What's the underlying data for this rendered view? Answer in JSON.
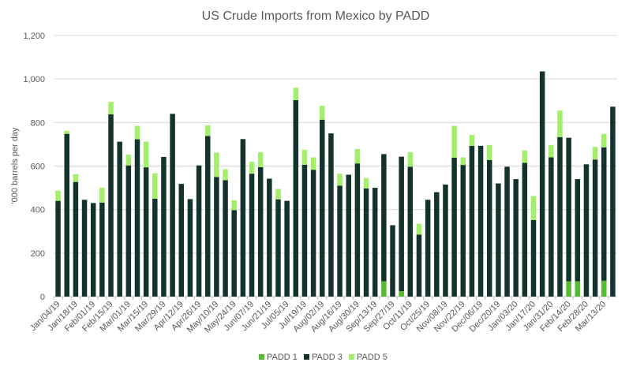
{
  "chart_data": {
    "type": "bar",
    "stacked": true,
    "title": "US Crude Imports from Mexico by PADD",
    "xlabel": "",
    "ylabel": "'000 barrels per day",
    "ylim": [
      0,
      1200
    ],
    "yticks": [
      "0",
      "200",
      "400",
      "600",
      "800",
      "1,000",
      "1,200"
    ],
    "grid": true,
    "legend_position": "bottom",
    "x_tick_labels": [
      "Jan/04/19",
      "Jan/18/19",
      "Feb/01/19",
      "Feb/15/19",
      "Mar/01/19",
      "Mar/15/19",
      "Mar/29/19",
      "Apr/12/19",
      "Apr/26/19",
      "May/10/19",
      "May/24/19",
      "Jun/07/19",
      "Jun/21/19",
      "Jul/05/19",
      "Jul/19/19",
      "Aug/02/19",
      "Aug/16/19",
      "Aug/30/19",
      "Sep/13/19",
      "Sep/27/19",
      "Oct/11/19",
      "Oct/25/19",
      "Nov/08/19",
      "Nov/22/19",
      "Dec/06/19",
      "Dec/20/19",
      "Jan/03/20",
      "Jan/17/20",
      "Jan/31/20",
      "Feb/14/20",
      "Feb/28/20",
      "Mar/13/20"
    ],
    "series": [
      {
        "name": "PADD 1",
        "color": "#55bb2f",
        "values": [
          0,
          0,
          0,
          0,
          0,
          0,
          0,
          0,
          0,
          0,
          0,
          0,
          0,
          0,
          0,
          0,
          0,
          0,
          0,
          0,
          0,
          0,
          0,
          0,
          0,
          0,
          0,
          0,
          0,
          0,
          0,
          0,
          0,
          0,
          0,
          0,
          0,
          70,
          0,
          25,
          0,
          0,
          0,
          0,
          0,
          0,
          0,
          0,
          0,
          0,
          0,
          0,
          0,
          0,
          0,
          0,
          0,
          0,
          70,
          70,
          0,
          0,
          73,
          0
        ]
      },
      {
        "name": "PADD 3",
        "color": "#15332d",
        "values": [
          440,
          748,
          527,
          445,
          430,
          432,
          838,
          712,
          603,
          723,
          594,
          450,
          642,
          840,
          518,
          448,
          603,
          738,
          550,
          535,
          397,
          724,
          565,
          595,
          542,
          447,
          440,
          903,
          606,
          583,
          813,
          750,
          510,
          560,
          612,
          497,
          500,
          585,
          328,
          618,
          597,
          285,
          445,
          480,
          515,
          638,
          605,
          693,
          693,
          628,
          520,
          597,
          540,
          615,
          352,
          1035,
          640,
          733,
          660,
          470,
          608,
          630,
          613,
          873
        ]
      },
      {
        "name": "PADD 5",
        "color": "#a3ef6a",
        "values": [
          47,
          14,
          35,
          0,
          0,
          68,
          57,
          0,
          49,
          62,
          118,
          117,
          0,
          0,
          0,
          0,
          0,
          49,
          112,
          50,
          46,
          0,
          55,
          68,
          0,
          48,
          0,
          57,
          69,
          57,
          64,
          0,
          55,
          0,
          66,
          48,
          0,
          0,
          0,
          0,
          67,
          50,
          0,
          0,
          0,
          147,
          35,
          50,
          0,
          69,
          0,
          0,
          0,
          57,
          110,
          0,
          57,
          122,
          0,
          0,
          0,
          58,
          62,
          0
        ]
      }
    ]
  }
}
